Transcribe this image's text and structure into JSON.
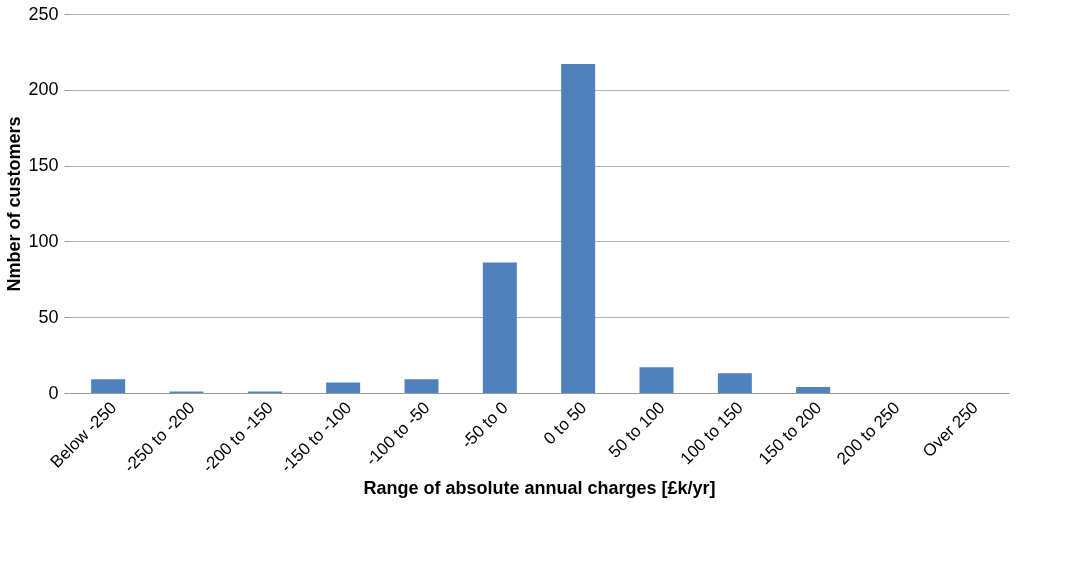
{
  "chart_data": {
    "type": "bar",
    "xlabel": "Range of absolute annual charges [£k/yr]",
    "ylabel": "Nmber of customers",
    "categories": [
      "Below -250",
      "-250 to -200",
      "-200 to -150",
      "-150 to -100",
      "-100 to -50",
      "-50 to 0",
      "0 to 50",
      "50 to 100",
      "100 to 150",
      "150 to 200",
      "200 to 250",
      "Over 250"
    ],
    "values": [
      9,
      1,
      1,
      7,
      9,
      86,
      217,
      17,
      13,
      4,
      0,
      0
    ],
    "color": "#4f81bd",
    "ylim": [
      0,
      250
    ],
    "yticks": [
      0,
      50,
      100,
      150,
      200,
      250
    ],
    "grid": "y"
  }
}
